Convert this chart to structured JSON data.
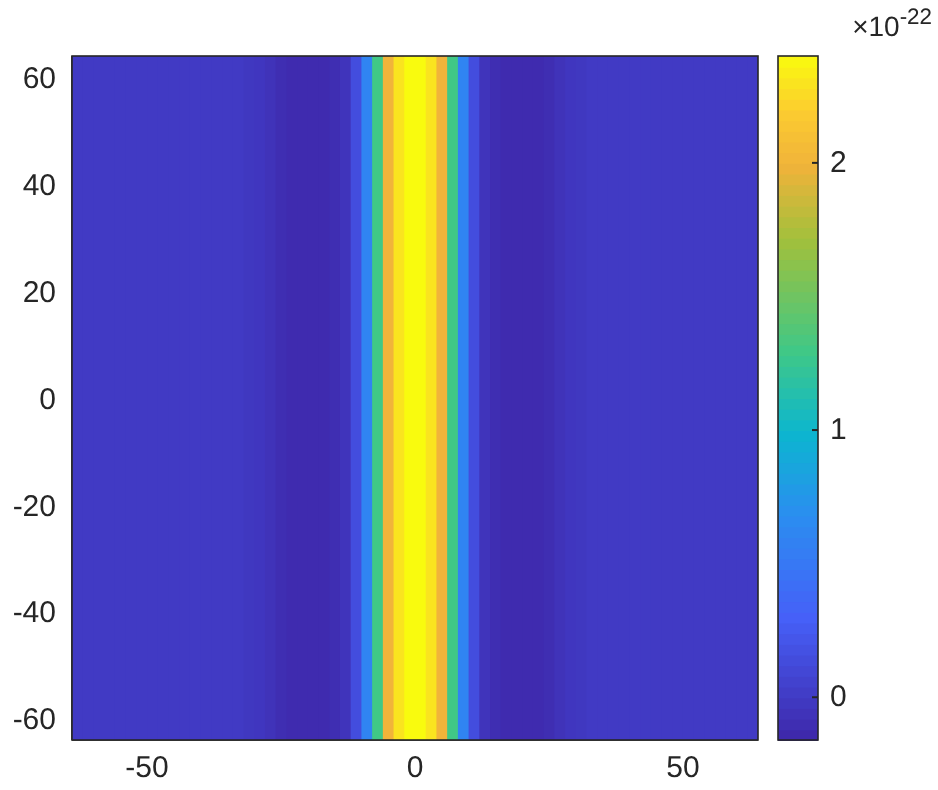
{
  "chart_data": {
    "type": "heatmap",
    "x": [
      -63,
      -61,
      -59,
      -57,
      -55,
      -53,
      -51,
      -49,
      -47,
      -45,
      -43,
      -41,
      -39,
      -37,
      -35,
      -33,
      -31,
      -29,
      -27,
      -25,
      -23,
      -21,
      -19,
      -17,
      -15,
      -13,
      -11,
      -9,
      -7,
      -5,
      -3,
      -1,
      1,
      3,
      5,
      7,
      9,
      11,
      13,
      15,
      17,
      19,
      21,
      23,
      25,
      27,
      29,
      31,
      33,
      35,
      37,
      39,
      41,
      43,
      45,
      47,
      49,
      51,
      53,
      55,
      57,
      59,
      61,
      63
    ],
    "cells": [
      [
        0,
        0,
        0,
        0,
        0,
        0,
        0,
        0,
        0,
        0,
        0,
        0,
        0,
        0,
        0,
        0,
        -0.02,
        -0.03,
        -0.06,
        -0.1,
        -0.12,
        -0.12,
        -0.12,
        -0.12,
        -0.1,
        -0.05,
        0.15,
        0.6,
        1.3,
        2.0,
        2.3,
        2.4,
        2.4,
        2.3,
        2.0,
        1.3,
        0.6,
        0.15,
        -0.05,
        -0.1,
        -0.12,
        -0.12,
        -0.12,
        -0.12,
        -0.1,
        -0.06,
        -0.03,
        -0.02,
        0,
        0,
        0,
        0,
        0,
        0,
        0,
        0,
        0,
        0,
        0,
        0,
        0,
        0,
        0,
        0
      ]
    ],
    "xlim": [
      -64,
      64
    ],
    "xticks": [
      -50,
      0,
      50
    ],
    "ylim": [
      -64,
      64
    ],
    "yticks": [
      -60,
      -40,
      -20,
      0,
      20,
      40,
      60
    ],
    "clim": [
      -0.16,
      2.4
    ],
    "cticks": [
      0,
      1,
      2
    ],
    "clabel": "×10$^{-22}$"
  }
}
